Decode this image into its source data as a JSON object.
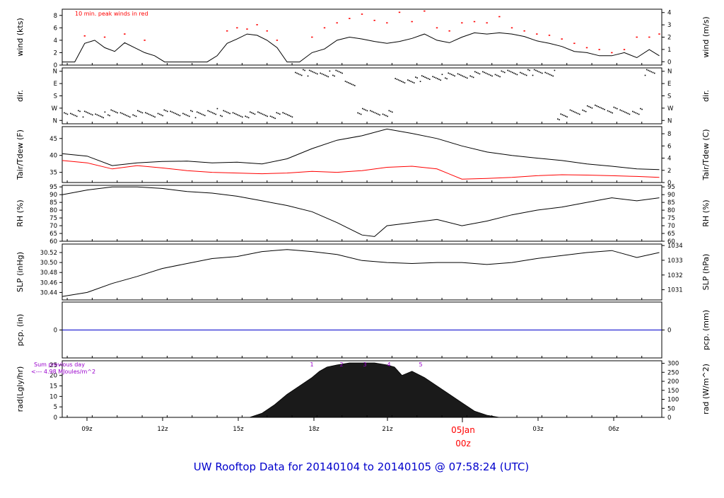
{
  "title": "UW Rooftop Data for 20140104  to  20140105 @ 07:58:24  (UTC)",
  "colors": {
    "trace": "#000000",
    "peak": "#ff0000",
    "dew": "#ff0000",
    "precip": "#0000cc",
    "title": "#0000cc",
    "note": "#9900cc",
    "date_label": "#ff0000"
  },
  "chart_data": [
    {
      "type": "line",
      "title": "",
      "ylabel_left": "wind (kts)",
      "ylabel_right": "wind (m/s)",
      "annotation": "10 min. peak winds in red",
      "ylim": [
        0,
        9
      ],
      "yticks_left": [
        0,
        2,
        4,
        6,
        8
      ],
      "yticks_right": [
        "0",
        "1",
        "2",
        "3",
        "4"
      ],
      "x_hours_since_0800z": [
        0,
        0.5,
        0.9,
        1.3,
        1.7,
        2.1,
        2.5,
        2.9,
        3.3,
        3.7,
        4.1,
        4.5,
        5.0,
        5.4,
        5.8,
        6.2,
        6.6,
        7.0,
        7.4,
        7.8,
        8.2,
        8.6,
        9.0,
        9.5,
        10.0,
        10.5,
        11.0,
        11.5,
        12.0,
        12.5,
        13.0,
        13.5,
        14.0,
        14.5,
        15.0,
        15.5,
        16.0,
        16.5,
        17.0,
        17.5,
        18.0,
        18.5,
        19.0,
        19.5,
        20.0,
        20.5,
        21.0,
        21.5,
        22.0,
        22.5,
        23.0,
        23.5,
        23.9
      ],
      "series": [
        {
          "values": [
            0.5,
            0.5,
            3.5,
            4.0,
            2.8,
            2.2,
            3.6,
            2.8,
            2.0,
            1.5,
            0.5,
            0.5,
            0.5,
            0.5,
            0.5,
            1.5,
            3.5,
            4.2,
            5.0,
            4.8,
            4.0,
            2.8,
            0.5,
            0.5,
            2.0,
            2.6,
            4.0,
            4.5,
            4.2,
            3.8,
            3.5,
            3.8,
            4.3,
            5.0,
            4.0,
            3.6,
            4.5,
            5.2,
            5.0,
            5.2,
            5.0,
            4.6,
            3.9,
            3.5,
            3.0,
            2.2,
            2.0,
            1.5,
            1.5,
            2.0,
            1.2,
            2.5,
            1.5
          ]
        },
        {
          "values": [
            null,
            null,
            4.7,
            null,
            4.5,
            null,
            5.0,
            null,
            4.0,
            null,
            null,
            null,
            null,
            null,
            null,
            null,
            5.5,
            6.0,
            5.8,
            6.5,
            5.5,
            4.0,
            null,
            null,
            4.5,
            6.0,
            6.8,
            7.5,
            8.2,
            7.2,
            6.8,
            8.5,
            7.0,
            8.7,
            6.0,
            5.5,
            6.8,
            7.0,
            6.8,
            7.8,
            6.0,
            5.5,
            5.0,
            4.8,
            4.2,
            3.5,
            2.8,
            2.5,
            2.0,
            2.5,
            4.5,
            4.5,
            5.0
          ]
        }
      ]
    },
    {
      "type": "scatter",
      "ylabel": "dir.",
      "yticks_left": [
        "N",
        "W",
        "S",
        "E",
        "N"
      ],
      "yticks_right": [
        "N",
        "W",
        "S",
        "E",
        "N"
      ],
      "x_hours_since_0800z": [
        0,
        0.5,
        1,
        1.5,
        2,
        2.5,
        3,
        3.5,
        4,
        4.5,
        5,
        5.5,
        6,
        6.5,
        7,
        7.5,
        8,
        8.5,
        9,
        9.5,
        10,
        10.5,
        11,
        11.5,
        12,
        12.5,
        13,
        13.5,
        14,
        14.5,
        15,
        15.5,
        16,
        16.5,
        17,
        17.5,
        18,
        18.5,
        19,
        19.5,
        20,
        20.5,
        21,
        21.5,
        22,
        22.5,
        23,
        23.5
      ],
      "values_deg": [
        60,
        55,
        50,
        45,
        60,
        50,
        55,
        45,
        60,
        50,
        55,
        45,
        70,
        55,
        50,
        45,
        50,
        40,
        40,
        355,
        350,
        345,
        350,
        280,
        70,
        60,
        55,
        290,
        300,
        310,
        320,
        330,
        335,
        340,
        345,
        345,
        350,
        355,
        355,
        350,
        30,
        70,
        90,
        100,
        80,
        60,
        70,
        355
      ]
    },
    {
      "type": "line",
      "ylabel_left": "Tair/Tdew (F)",
      "ylabel_right": "Tair/Tdew (C)",
      "ylim": [
        32,
        48.5
      ],
      "yticks_left": [
        35,
        40,
        45
      ],
      "yticks_right": [
        "0",
        "2",
        "4",
        "6",
        "8"
      ],
      "x_hours_since_0800z": [
        0,
        1,
        2,
        3,
        4,
        5,
        6,
        7,
        8,
        9,
        10,
        11,
        12,
        13,
        14,
        15,
        16,
        17,
        18,
        19,
        20,
        21,
        22,
        23,
        23.9
      ],
      "series": [
        {
          "name": "Tair",
          "values": [
            40.5,
            39.8,
            37.0,
            37.8,
            38.2,
            38.3,
            37.8,
            38.0,
            37.5,
            39.0,
            42.0,
            44.5,
            45.8,
            47.8,
            46.5,
            45.0,
            42.8,
            41.0,
            40.0,
            39.2,
            38.5,
            37.5,
            36.8,
            36.0,
            35.8
          ]
        },
        {
          "name": "Tdew",
          "values": [
            38.5,
            37.8,
            36.0,
            37.0,
            36.3,
            35.5,
            35.0,
            34.8,
            34.6,
            34.8,
            35.3,
            35.0,
            35.5,
            36.5,
            36.8,
            36.0,
            33.0,
            33.2,
            33.5,
            34.0,
            34.3,
            34.2,
            34.0,
            33.8,
            33.5
          ]
        }
      ]
    },
    {
      "type": "line",
      "ylabel_left": "RH (%)",
      "ylabel_right": "RH (%)",
      "ylim": [
        60,
        96
      ],
      "yticks": [
        60,
        65,
        70,
        75,
        80,
        85,
        90,
        95
      ],
      "x_hours_since_0800z": [
        0,
        1,
        2,
        3,
        4,
        5,
        6,
        7,
        8,
        9,
        10,
        11,
        11.5,
        12,
        12.5,
        13,
        14,
        15,
        16,
        17,
        18,
        19,
        20,
        21,
        22,
        23,
        23.9
      ],
      "series": [
        {
          "values": [
            90,
            93,
            95,
            95,
            94,
            92,
            91,
            89,
            86,
            83,
            79,
            72,
            68,
            64,
            63,
            70,
            72,
            74,
            70,
            73,
            77,
            80,
            82,
            85,
            88,
            86,
            88
          ]
        }
      ]
    },
    {
      "type": "line",
      "ylabel_left": "SLP (inHg)",
      "ylabel_right": "SLP (hPa)",
      "ylim": [
        30.425,
        30.537
      ],
      "yticks_left": [
        "30.44",
        "30.46",
        "30.48",
        "30.50",
        "30.52"
      ],
      "yticks_right": [
        "1031",
        "1032",
        "1033",
        "1034"
      ],
      "x_hours_since_0800z": [
        0,
        1,
        2,
        3,
        4,
        5,
        6,
        7,
        8,
        9,
        10,
        11,
        12,
        13,
        14,
        15,
        16,
        17,
        18,
        19,
        20,
        21,
        22,
        23,
        23.9
      ],
      "series": [
        {
          "values": [
            30.432,
            30.44,
            30.458,
            30.472,
            30.488,
            30.498,
            30.508,
            30.512,
            30.522,
            30.526,
            30.522,
            30.516,
            30.504,
            30.5,
            30.498,
            30.5,
            30.5,
            30.496,
            30.5,
            30.508,
            30.514,
            30.52,
            30.524,
            30.51,
            30.52
          ]
        }
      ]
    },
    {
      "type": "line",
      "ylabel_left": "pcp. (in)",
      "ylabel_right": "pcp. (mm)",
      "yticks_left": [
        "0"
      ],
      "yticks_right": [
        "0"
      ],
      "series": [
        {
          "values": [
            0,
            0
          ]
        }
      ]
    },
    {
      "type": "area",
      "ylabel_left": "rad(Lgly/hr)",
      "ylabel_right": "rad (W/m^2)",
      "ylim": [
        0,
        27
      ],
      "yticks_left": [
        "0",
        "5",
        "10",
        "15",
        "20",
        "25"
      ],
      "yticks_right": [
        "0",
        "50",
        "100",
        "150",
        "200",
        "250",
        "300"
      ],
      "note_line1": "Sum previous day",
      "note_line2": "<--- 4.98 MJoules/m^2",
      "markers": [
        "1",
        "2",
        "3",
        "4",
        "5"
      ],
      "x_hours_since_0800z": [
        7.5,
        8.0,
        8.5,
        9.0,
        9.5,
        10.0,
        10.3,
        10.6,
        11.0,
        11.5,
        12.0,
        12.5,
        13.0,
        13.3,
        13.6,
        14.0,
        14.5,
        15.0,
        15.5,
        16.0,
        16.5,
        17.0,
        17.5
      ],
      "series": [
        {
          "values": [
            0,
            2,
            6,
            11,
            15,
            19,
            22,
            24,
            25,
            26,
            26,
            26,
            25,
            24,
            20,
            22,
            19,
            15,
            11,
            7,
            3,
            1,
            0
          ]
        }
      ]
    }
  ],
  "x_axis": {
    "ticks": [
      "09z",
      "12z",
      "15z",
      "18z",
      "21z",
      "03z",
      "06z"
    ],
    "date_label": "05Jan",
    "date_sub": "00z"
  }
}
